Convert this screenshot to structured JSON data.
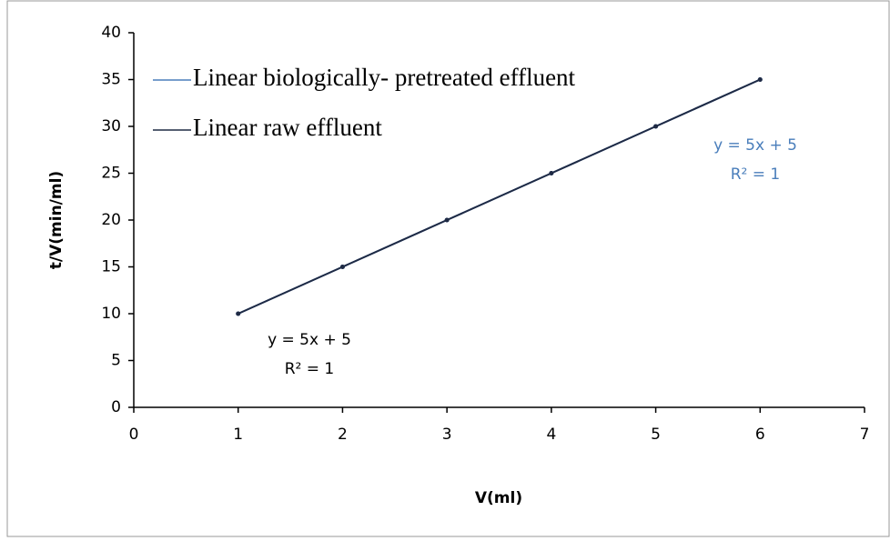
{
  "chart_data": {
    "type": "line",
    "x_label": "V(ml)",
    "y_label": "t/V(min/ml)",
    "x": [
      1,
      2,
      3,
      4,
      5,
      6
    ],
    "series": [
      {
        "name": "Linear biologically- pretreated effluent",
        "color": "#4a7ebb",
        "values": [
          10,
          15,
          20,
          25,
          30,
          35
        ]
      },
      {
        "name": "Linear raw effluent",
        "color": "#1f2a44",
        "values": [
          10,
          15,
          20,
          25,
          30,
          35
        ]
      }
    ],
    "annotations": [
      {
        "lines": [
          "y = 5x + 5",
          "R² = 1"
        ],
        "color": "#4a7ebb"
      },
      {
        "lines": [
          "y = 5x + 5",
          "R² = 1"
        ],
        "color": "#000000"
      }
    ],
    "xlim": [
      0,
      7
    ],
    "xticks": [
      0,
      1,
      2,
      3,
      4,
      5,
      6,
      7
    ],
    "ylim": [
      0,
      40
    ],
    "yticks": [
      0,
      5,
      10,
      15,
      20,
      25,
      30,
      35,
      40
    ],
    "grid": false
  }
}
